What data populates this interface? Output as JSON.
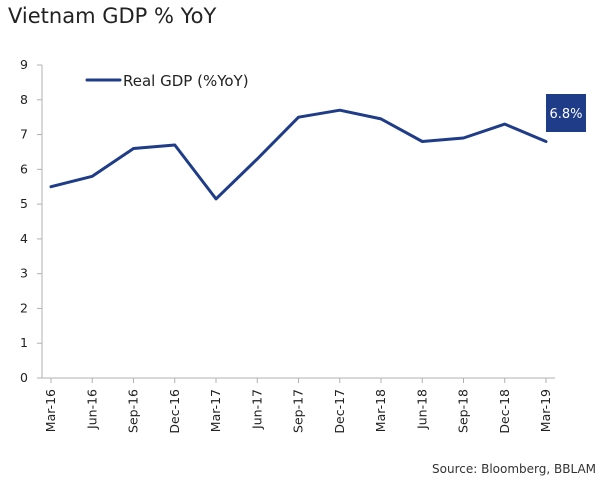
{
  "chart_data": {
    "type": "line",
    "title": "Vietnam GDP % YoY",
    "source": "Source: Bloomberg, BBLAM",
    "categories": [
      "Mar-16",
      "Jun-16",
      "Sep-16",
      "Dec-16",
      "Mar-17",
      "Jun-17",
      "Sep-17",
      "Dec-17",
      "Mar-18",
      "Jun-18",
      "Sep-18",
      "Dec-18",
      "Mar-19"
    ],
    "series": [
      {
        "name": "Real GDP (%YoY)",
        "color": "#1f3c88",
        "values": [
          5.5,
          5.8,
          6.6,
          6.7,
          5.15,
          6.3,
          7.5,
          7.7,
          7.45,
          6.8,
          6.9,
          7.3,
          6.8
        ]
      }
    ],
    "ylim": [
      0,
      9
    ],
    "yticks": [
      0,
      1,
      2,
      3,
      4,
      5,
      6,
      7,
      8,
      9
    ],
    "grid": false,
    "legend": "top-left",
    "callout": {
      "label": "6.8%",
      "category": "Mar-19",
      "color": "#1f3c88"
    },
    "xlabel": "",
    "ylabel": ""
  }
}
